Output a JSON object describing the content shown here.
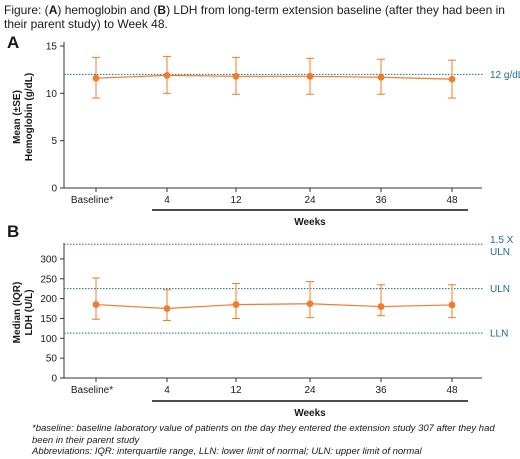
{
  "caption": {
    "prefix": "Figure: (",
    "a": "A",
    "mid1": ") hemoglobin and (",
    "b": "B",
    "rest": ") LDH from long-term extension baseline (after they had been in their parent study) to Week 48."
  },
  "colors": {
    "series": "#f07c2c",
    "reference": "#1f6c8e",
    "axis": "#333333"
  },
  "chart_data": [
    {
      "type": "line",
      "panel": "A",
      "ylabel_line1": "Mean (±SE)",
      "ylabel_line2": "Hemoglobin (g/dL)",
      "xlabel": "Weeks",
      "categories": [
        "Baseline*",
        "4",
        "12",
        "24",
        "36",
        "48"
      ],
      "ylim": [
        0,
        15
      ],
      "yticks": [
        "0",
        "5",
        "10",
        "15"
      ],
      "series": [
        {
          "values": [
            11.6,
            11.9,
            11.8,
            11.8,
            11.7,
            11.5
          ],
          "error_low": [
            9.5,
            10.0,
            9.9,
            9.9,
            9.9,
            9.5
          ],
          "error_high": [
            13.8,
            13.9,
            13.8,
            13.7,
            13.6,
            13.5
          ]
        }
      ],
      "reference_lines": [
        {
          "value": 12,
          "label": "12 g/dL"
        }
      ],
      "grid": false
    },
    {
      "type": "line",
      "panel": "B",
      "ylabel_line1": "Median (IQR)",
      "ylabel_line2": "LDH (U/L)",
      "xlabel": "Weeks",
      "categories": [
        "Baseline*",
        "4",
        "12",
        "24",
        "36",
        "48"
      ],
      "ylim": [
        0,
        330
      ],
      "yticks": [
        "0",
        "50",
        "100",
        "150",
        "200",
        "250",
        "300"
      ],
      "series": [
        {
          "values": [
            185,
            175,
            185,
            187,
            180,
            184
          ],
          "error_low": [
            148,
            145,
            150,
            152,
            157,
            152
          ],
          "error_high": [
            252,
            222,
            238,
            243,
            235,
            235
          ]
        }
      ],
      "reference_lines": [
        {
          "value": 337,
          "label": "1.5 X ULN",
          "label_line1": "1.5 X",
          "label_line2": "ULN"
        },
        {
          "value": 225,
          "label": "ULN"
        },
        {
          "value": 113,
          "label": "LLN"
        }
      ],
      "grid": false
    }
  ],
  "footnotes": {
    "baseline": "*baseline: baseline laboratory value of patients on the day they entered the extension study 307 after they had been in their parent study",
    "abbreviations": "Abbreviations: IQR: interquartile range, LLN: lower limit of normal; ULN: upper limit of normal"
  }
}
